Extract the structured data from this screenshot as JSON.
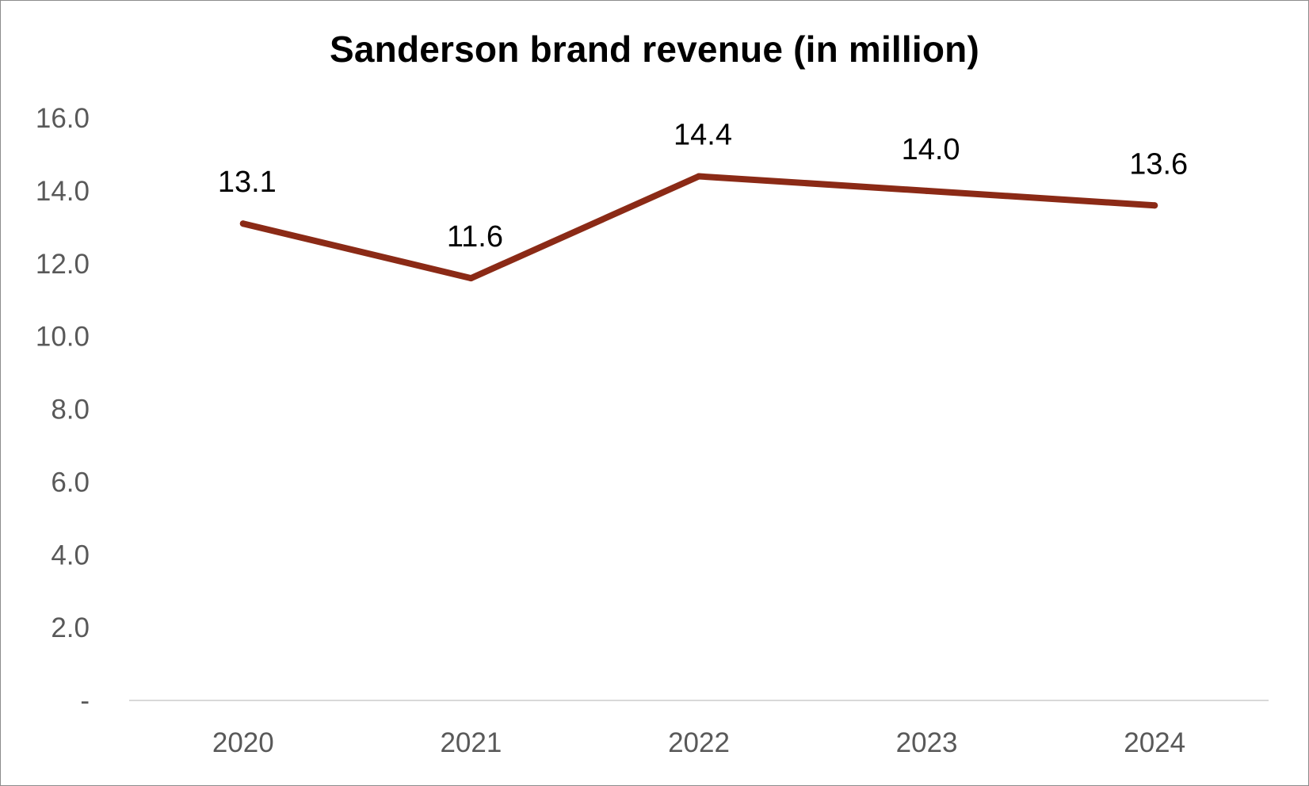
{
  "chart_data": {
    "type": "line",
    "title": "Sanderson brand revenue (in million)",
    "xlabel": "",
    "ylabel": "",
    "categories": [
      "2020",
      "2021",
      "2022",
      "2023",
      "2024"
    ],
    "series": [
      {
        "values": [
          13.1,
          11.6,
          14.4,
          14.0,
          13.6
        ],
        "data_labels": [
          "13.1",
          "11.6",
          "14.4",
          "14.0",
          "13.6"
        ],
        "color": "#8b2a16"
      }
    ],
    "ylim": [
      0,
      16
    ],
    "y_ticks": [
      0,
      2,
      4,
      6,
      8,
      10,
      12,
      14,
      16
    ],
    "y_tick_labels": [
      "-",
      "2.0",
      "4.0",
      "6.0",
      "8.0",
      "10.0",
      "12.0",
      "14.0",
      "16.0"
    ],
    "grid": false,
    "legend": "none",
    "colors": {
      "line": "#8b2a16",
      "axis": "#d9d9d9",
      "tick_text": "#595959",
      "label_text": "#000000",
      "border": "#8c8c8c"
    }
  }
}
